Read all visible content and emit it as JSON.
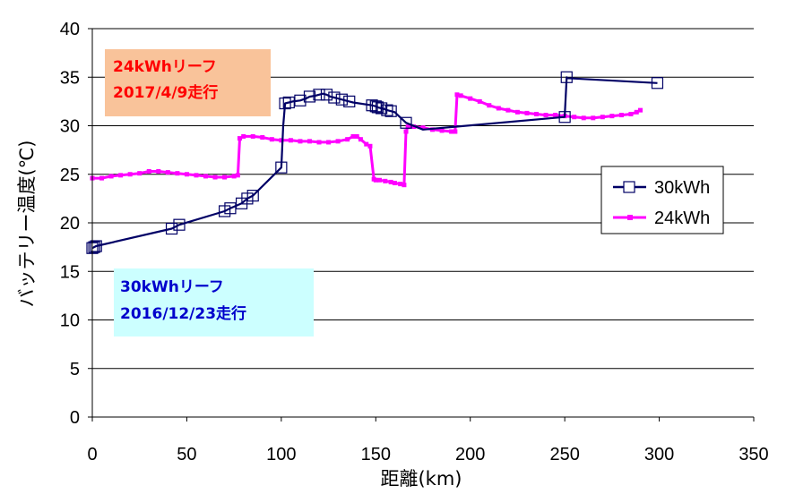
{
  "chart_data": {
    "type": "line",
    "title": "",
    "xlabel": "距離(km)",
    "ylabel": "バッテリー温度(℃)",
    "xlim": [
      0,
      350
    ],
    "ylim": [
      0,
      40
    ],
    "xticks": [
      "0",
      "50",
      "100",
      "150",
      "200",
      "250",
      "300",
      "350"
    ],
    "yticks": [
      "0",
      "5",
      "10",
      "15",
      "20",
      "25",
      "30",
      "35",
      "40"
    ],
    "grid": "horizontal",
    "legend_position": "right",
    "series": [
      {
        "name": "30kWh",
        "color": "#000066",
        "marker": "open-square",
        "x": [
          0,
          1,
          2,
          42,
          46,
          70,
          73,
          79,
          82,
          85,
          100,
          101,
          102,
          104,
          106,
          110,
          113,
          115,
          118,
          120,
          122,
          124,
          126,
          128,
          130,
          132,
          134,
          136,
          138,
          148,
          150,
          151,
          153,
          155,
          156,
          158,
          160,
          166,
          175,
          250,
          250,
          251,
          251,
          299
        ],
        "y": [
          17.4,
          17.5,
          17.6,
          19.4,
          19.8,
          21.2,
          21.5,
          22.0,
          22.5,
          22.8,
          25.7,
          30.0,
          32.3,
          32.4,
          32.5,
          32.6,
          32.8,
          33.0,
          33.1,
          33.2,
          33.3,
          33.2,
          33.0,
          32.9,
          32.8,
          32.7,
          32.6,
          32.5,
          32.4,
          32.1,
          32.0,
          31.9,
          31.8,
          31.7,
          31.6,
          31.5,
          31.4,
          30.3,
          29.6,
          30.9,
          31.0,
          35.0,
          34.9,
          34.4
        ],
        "marker_indices": [
          0,
          1,
          2,
          3,
          4,
          5,
          6,
          7,
          8,
          9,
          10,
          12,
          13,
          15,
          17,
          19,
          21,
          23,
          25,
          27,
          29,
          30,
          31,
          32,
          34,
          35,
          37,
          39,
          41,
          43
        ]
      },
      {
        "name": "24kWh",
        "color": "#ff00ff",
        "marker": "small-square",
        "x": [
          0,
          5,
          10,
          15,
          20,
          25,
          30,
          35,
          40,
          45,
          50,
          55,
          60,
          65,
          70,
          75,
          77,
          78,
          80,
          85,
          90,
          95,
          100,
          105,
          110,
          115,
          120,
          125,
          130,
          135,
          138,
          140,
          142,
          145,
          147,
          149,
          150,
          152,
          155,
          158,
          160,
          163,
          165,
          166,
          167,
          170,
          175,
          180,
          185,
          190,
          192,
          193,
          195,
          200,
          205,
          210,
          215,
          220,
          225,
          230,
          235,
          240,
          245,
          250,
          255,
          260,
          265,
          270,
          275,
          280,
          285,
          288,
          290
        ],
        "y": [
          24.6,
          24.6,
          24.8,
          24.9,
          25.0,
          25.1,
          25.3,
          25.3,
          25.2,
          25.1,
          25.0,
          24.9,
          24.8,
          24.7,
          24.7,
          24.8,
          24.9,
          28.7,
          28.9,
          28.9,
          28.8,
          28.6,
          28.5,
          28.5,
          28.4,
          28.4,
          28.3,
          28.3,
          28.4,
          28.6,
          28.9,
          28.9,
          28.6,
          28.1,
          27.9,
          24.5,
          24.4,
          24.4,
          24.3,
          24.2,
          24.1,
          24.0,
          23.9,
          29.4,
          29.9,
          29.9,
          29.8,
          29.6,
          29.5,
          29.4,
          29.4,
          33.2,
          33.1,
          32.8,
          32.5,
          32.1,
          31.8,
          31.6,
          31.4,
          31.3,
          31.2,
          31.1,
          31.1,
          31.0,
          30.9,
          30.8,
          30.8,
          30.9,
          31.0,
          31.1,
          31.2,
          31.4,
          31.6
        ]
      }
    ],
    "annotations": [
      {
        "line1": "24kWhリーフ",
        "line2": "2017/4/9走行",
        "text_color": "#ff0000",
        "bg_color": "#f9c39a"
      },
      {
        "line1": "30kWhリーフ",
        "line2": "2016/12/23走行",
        "text_color": "#0000cc",
        "bg_color": "#ccffff"
      }
    ]
  }
}
